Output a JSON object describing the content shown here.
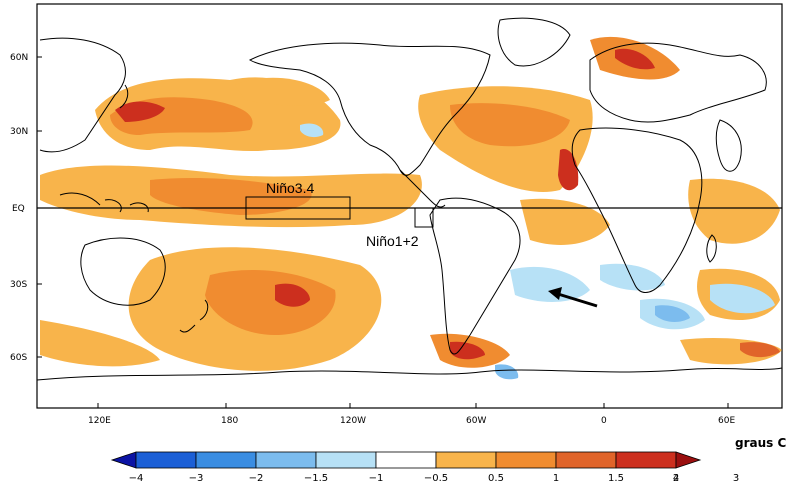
{
  "map": {
    "lat_labels": [
      "60N",
      "30N",
      "EQ",
      "30S",
      "60S"
    ],
    "lon_labels": [
      "120E",
      "180",
      "120W",
      "60W",
      "0",
      "60E"
    ],
    "region_labels": [
      "Niño3.4",
      "Niño1+2"
    ],
    "units_label": "graus C",
    "colors": {
      "land_outline": "#000000",
      "ocean_background": "#ffffff"
    }
  },
  "colorbar": {
    "tick_labels": [
      "−4",
      "−3",
      "−2",
      "−1.5",
      "−1",
      "−0.5",
      "0.5",
      "1",
      "1.5",
      "2",
      "3",
      "4"
    ],
    "colors": [
      "#0b13a4",
      "#1b5fd6",
      "#3a8de2",
      "#7cbcee",
      "#b7e1f6",
      "#ffffff",
      "#f8b44b",
      "#f08c30",
      "#e0642a",
      "#cc2f1e",
      "#9a0f0f"
    ]
  }
}
